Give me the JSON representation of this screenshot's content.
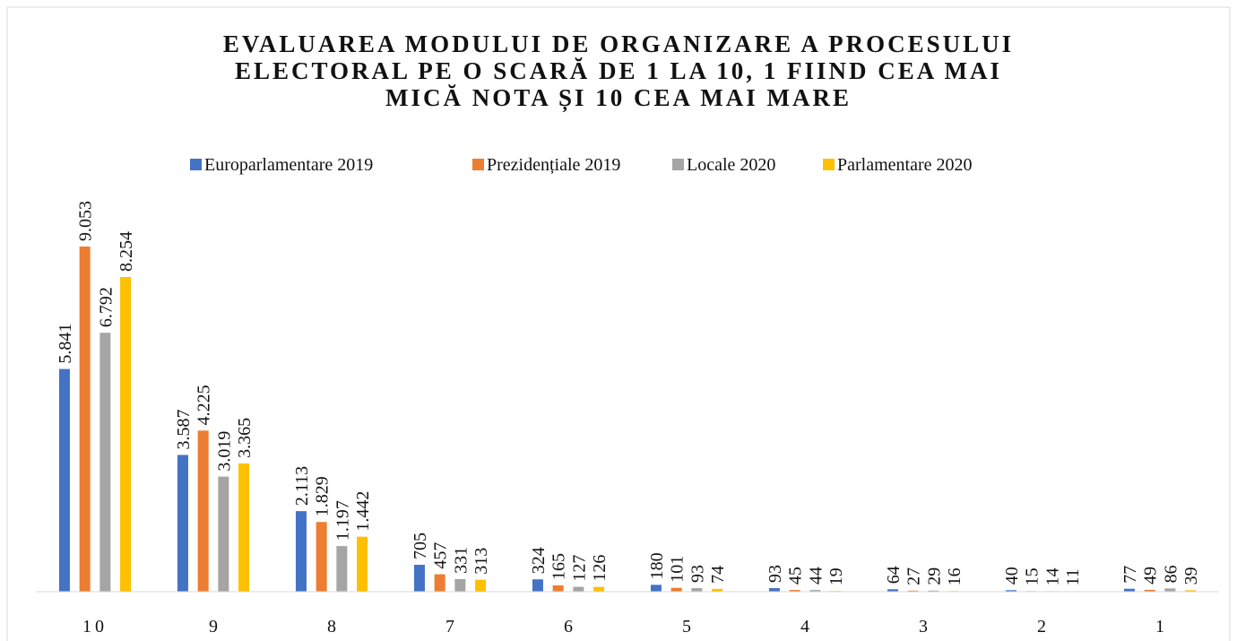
{
  "chart_data": {
    "type": "bar",
    "title": [
      "EVALUAREA MODULUI DE ORGANIZARE A PROCESULUI",
      "ELECTORAL PE O SCARĂ DE 1 LA 10, 1 FIIND CEA MAI",
      "MICĂ NOTA ȘI 10 CEA MAI MARE"
    ],
    "categories": [
      "10",
      "9",
      "8",
      "7",
      "6",
      "5",
      "4",
      "3",
      "2",
      "1"
    ],
    "series": [
      {
        "name": "Europarlamentare 2019",
        "color": "#4472c4",
        "values": [
          5841,
          3587,
          2113,
          705,
          324,
          180,
          93,
          64,
          40,
          77
        ],
        "value_labels": [
          "5.841",
          "3.587",
          "2.113",
          "705",
          "324",
          "180",
          "93",
          "64",
          "40",
          "77"
        ]
      },
      {
        "name": "Prezidențiale 2019",
        "color": "#ed7d31",
        "values": [
          9053,
          4225,
          1829,
          457,
          165,
          101,
          45,
          27,
          15,
          49
        ],
        "value_labels": [
          "9.053",
          "4.225",
          "1.829",
          "457",
          "165",
          "101",
          "45",
          "27",
          "15",
          "49"
        ]
      },
      {
        "name": "Locale 2020",
        "color": "#a5a5a5",
        "values": [
          6792,
          3019,
          1197,
          331,
          127,
          93,
          44,
          29,
          14,
          86
        ],
        "value_labels": [
          "6.792",
          "3.019",
          "1.197",
          "331",
          "127",
          "93",
          "44",
          "29",
          "14",
          "86"
        ]
      },
      {
        "name": "Parlamentare 2020",
        "color": "#ffc000",
        "values": [
          8254,
          3365,
          1442,
          313,
          126,
          74,
          19,
          16,
          11,
          39
        ],
        "value_labels": [
          "8.254",
          "3.365",
          "1.442",
          "313",
          "126",
          "74",
          "19",
          "16",
          "11",
          "39"
        ]
      }
    ],
    "legend": "top"
  }
}
